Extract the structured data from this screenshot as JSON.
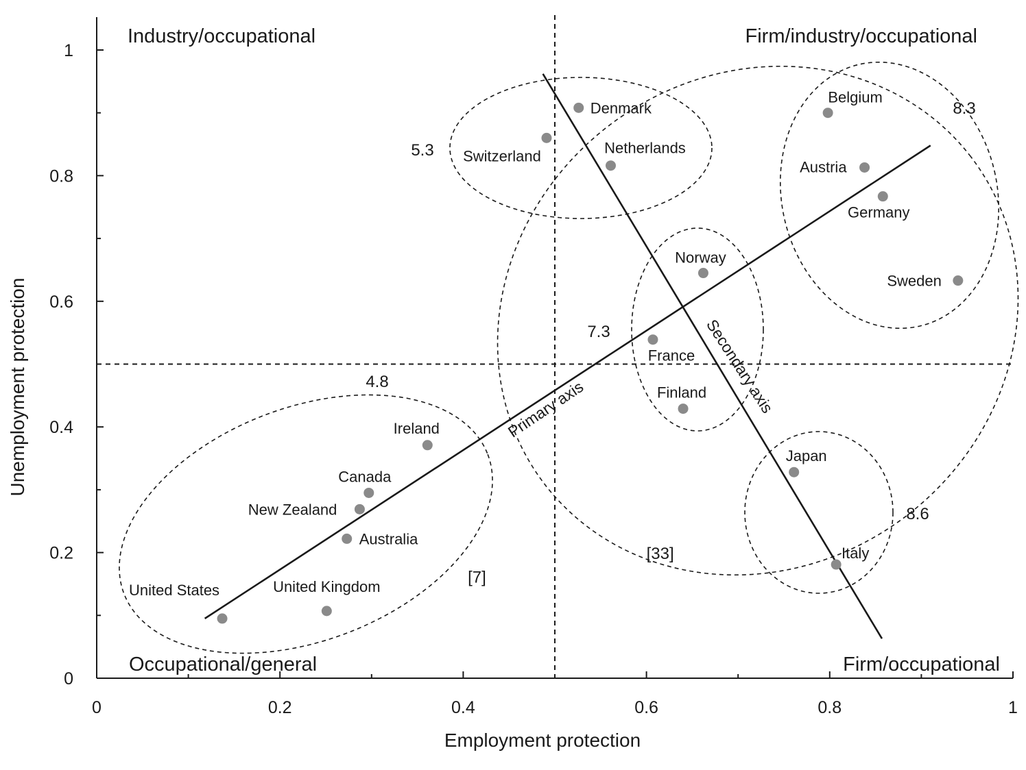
{
  "chart_data": {
    "type": "scatter",
    "title": "",
    "xlabel": "Employment protection",
    "ylabel": "Unemployment protection",
    "xlim": [
      0,
      1
    ],
    "ylim": [
      0,
      1
    ],
    "x_ticks": [
      {
        "value": 0,
        "label": "0"
      },
      {
        "value": 0.2,
        "label": "0.2"
      },
      {
        "value": 0.4,
        "label": "0.4"
      },
      {
        "value": 0.6,
        "label": "0.6"
      },
      {
        "value": 0.8,
        "label": "0.8"
      },
      {
        "value": 1,
        "label": "1"
      }
    ],
    "y_ticks": [
      {
        "value": 0,
        "label": "0"
      },
      {
        "value": 0.2,
        "label": "0.2"
      },
      {
        "value": 0.4,
        "label": "0.4"
      },
      {
        "value": 0.6,
        "label": "0.6"
      },
      {
        "value": 0.8,
        "label": "0.8"
      },
      {
        "value": 1,
        "label": "1"
      }
    ],
    "grid": false,
    "reference_lines": {
      "x": 0.5,
      "y": 0.5
    },
    "quadrant_labels": [
      {
        "label": "Industry/occupational",
        "position": "top-left"
      },
      {
        "label": "Firm/industry/occupational",
        "position": "top-right"
      },
      {
        "label": "Occupational/general",
        "position": "bottom-left"
      },
      {
        "label": "Firm/occupational",
        "position": "bottom-right"
      }
    ],
    "points": [
      {
        "name": "United States",
        "x": 0.137,
        "y": 0.095
      },
      {
        "name": "United Kingdom",
        "x": 0.251,
        "y": 0.107
      },
      {
        "name": "Australia",
        "x": 0.273,
        "y": 0.222
      },
      {
        "name": "New Zealand",
        "x": 0.287,
        "y": 0.269
      },
      {
        "name": "Canada",
        "x": 0.297,
        "y": 0.295
      },
      {
        "name": "Ireland",
        "x": 0.361,
        "y": 0.371
      },
      {
        "name": "Switzerland",
        "x": 0.491,
        "y": 0.86
      },
      {
        "name": "Denmark",
        "x": 0.526,
        "y": 0.908
      },
      {
        "name": "Netherlands",
        "x": 0.561,
        "y": 0.816
      },
      {
        "name": "France",
        "x": 0.607,
        "y": 0.539
      },
      {
        "name": "Finland",
        "x": 0.64,
        "y": 0.429
      },
      {
        "name": "Norway",
        "x": 0.662,
        "y": 0.645
      },
      {
        "name": "Japan",
        "x": 0.761,
        "y": 0.328
      },
      {
        "name": "Belgium",
        "x": 0.798,
        "y": 0.9
      },
      {
        "name": "Italy",
        "x": 0.807,
        "y": 0.181
      },
      {
        "name": "Austria",
        "x": 0.838,
        "y": 0.813
      },
      {
        "name": "Germany",
        "x": 0.858,
        "y": 0.767
      },
      {
        "name": "Sweden",
        "x": 0.94,
        "y": 0.633
      }
    ],
    "trend_lines": [
      {
        "label": "Primary axis",
        "from": [
          0.118,
          0.095
        ],
        "to": [
          0.91,
          0.848
        ]
      },
      {
        "label": "Secondary axis",
        "from": [
          0.487,
          0.962
        ],
        "to": [
          0.857,
          0.063
        ]
      }
    ],
    "clusters": [
      {
        "label": "4.8",
        "members": [
          "United States",
          "United Kingdom",
          "Australia",
          "New Zealand",
          "Canada",
          "Ireland"
        ]
      },
      {
        "label": "5.3",
        "members": [
          "Switzerland",
          "Denmark",
          "Netherlands"
        ]
      },
      {
        "label": "7.3",
        "members": [
          "France",
          "Finland",
          "Norway"
        ]
      },
      {
        "label": "8.3",
        "members": [
          "Belgium",
          "Austria",
          "Germany",
          "Sweden"
        ]
      },
      {
        "label": "8.6",
        "members": [
          "Japan",
          "Italy"
        ]
      }
    ],
    "group_labels": [
      {
        "label": "[7]",
        "x": 0.415,
        "y": 0.152
      },
      {
        "label": "[33]",
        "x": 0.615,
        "y": 0.19
      }
    ]
  }
}
